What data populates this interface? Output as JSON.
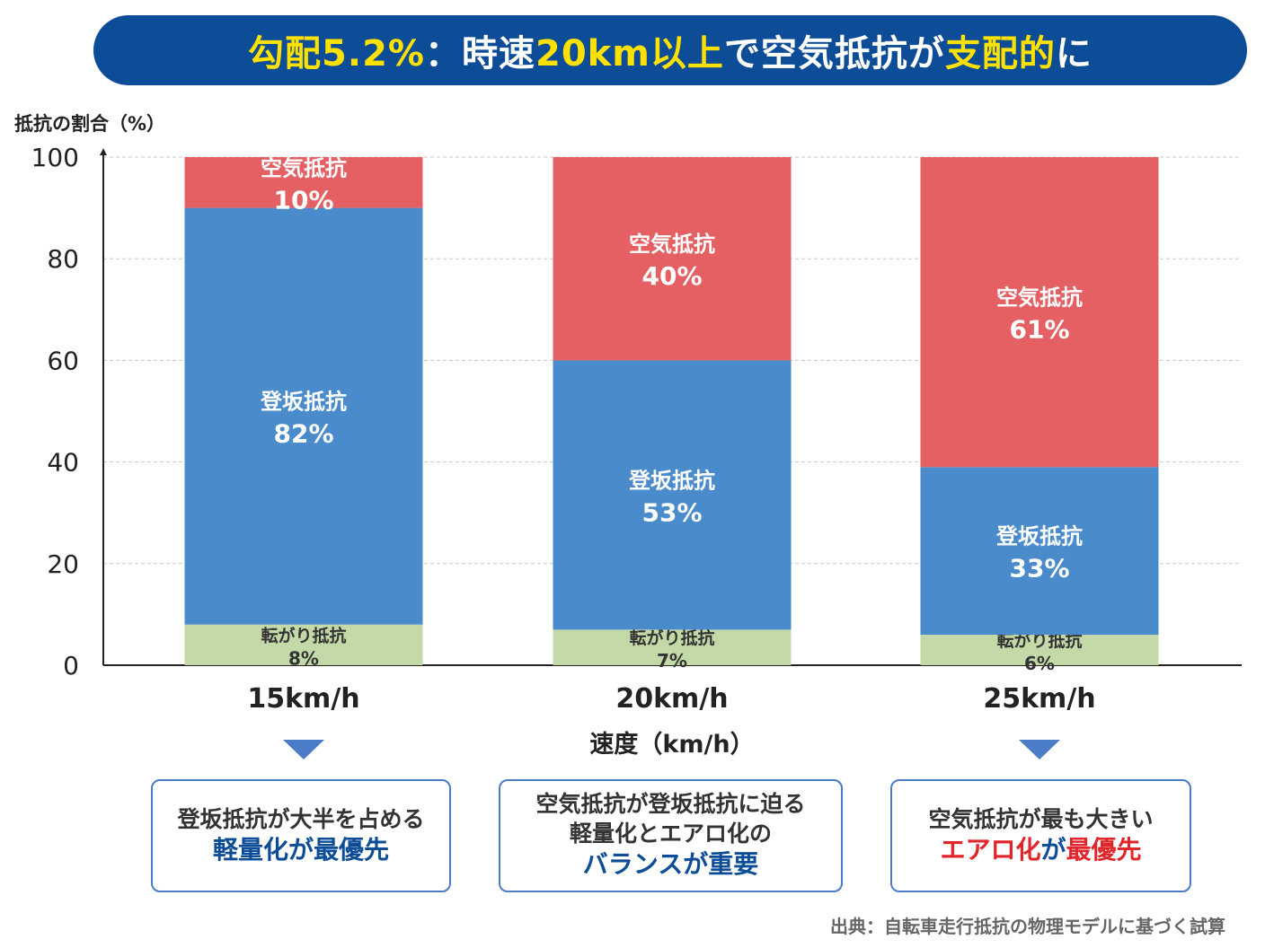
{
  "banner": {
    "p1": "勾配5.2%",
    "p2": "：時速",
    "p3": "20km以上",
    "p4": "で空気抵抗が",
    "p5": "支配的",
    "p6": "に"
  },
  "chart_data": {
    "type": "bar",
    "stacked": true,
    "categories": [
      "15km/h",
      "20km/h",
      "25km/h"
    ],
    "series": [
      {
        "name": "転がり抵抗",
        "values": [
          8,
          7,
          6
        ],
        "labels": [
          "8%",
          "7%",
          "6%"
        ],
        "color": "#c4d9a8",
        "text_color": "#333333"
      },
      {
        "name": "登坂抵抗",
        "values": [
          82,
          53,
          33
        ],
        "labels": [
          "82%",
          "53%",
          "33%"
        ],
        "color": "#4a8bcc",
        "text_color": "#ffffff"
      },
      {
        "name": "空気抵抗",
        "values": [
          10,
          40,
          61
        ],
        "labels": [
          "10%",
          "40%",
          "61%"
        ],
        "color": "#e46062",
        "text_color": "#ffffff"
      }
    ],
    "ylabel": "抵抗の割合（%）",
    "xlabel": "速度（km/h）",
    "ylim": [
      0,
      100
    ],
    "yticks": [
      0,
      20,
      40,
      60,
      80,
      100
    ],
    "grid": true
  },
  "callouts": [
    {
      "normal": "登坂抵抗が大半を占める",
      "emph": "軽量化が最優先"
    },
    {
      "normal1": "空気抵抗が登坂抵抗に迫る",
      "normal2": "軽量化とエアロ化の",
      "emph": "バランスが重要"
    },
    {
      "normal": "空気抵抗が最も大きい",
      "emph_red": "エアロ化",
      "emph_mid": "が",
      "emph_red2": "最優先"
    }
  ],
  "source": "出典：自転車走行抵抗の物理モデルに基づく試算"
}
